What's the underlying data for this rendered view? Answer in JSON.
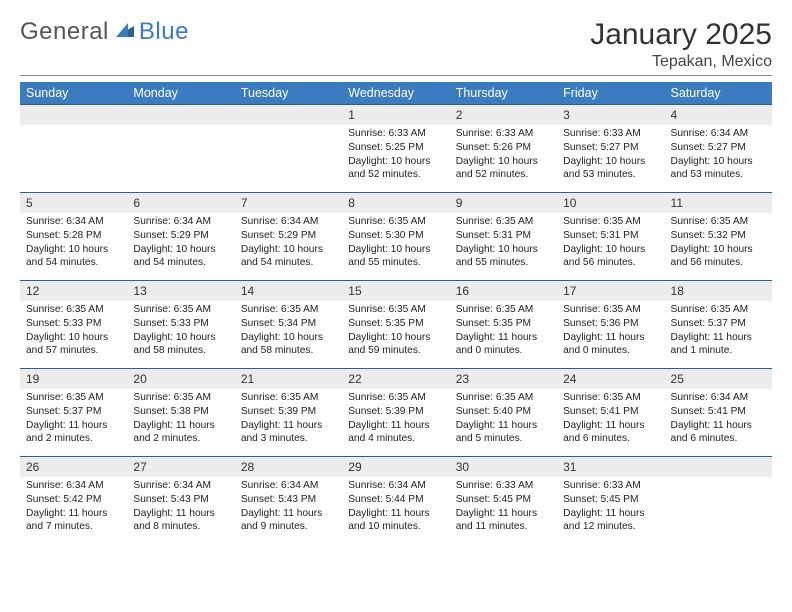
{
  "logo": {
    "word1": "General",
    "word2": "Blue"
  },
  "title": "January 2025",
  "location": "Tepakan, Mexico",
  "colors": {
    "header_bg": "#3b7bbf",
    "header_text": "#ffffff",
    "band_bg": "#ececec",
    "row_border": "#2f5f8f",
    "logo_blue": "#3b7bbf",
    "logo_gray": "#555555"
  },
  "weekdays": [
    "Sunday",
    "Monday",
    "Tuesday",
    "Wednesday",
    "Thursday",
    "Friday",
    "Saturday"
  ],
  "weeks": [
    [
      {
        "blank": true
      },
      {
        "blank": true
      },
      {
        "blank": true
      },
      {
        "day": "1",
        "sunrise": "Sunrise: 6:33 AM",
        "sunset": "Sunset: 5:25 PM",
        "daylight": "Daylight: 10 hours and 52 minutes."
      },
      {
        "day": "2",
        "sunrise": "Sunrise: 6:33 AM",
        "sunset": "Sunset: 5:26 PM",
        "daylight": "Daylight: 10 hours and 52 minutes."
      },
      {
        "day": "3",
        "sunrise": "Sunrise: 6:33 AM",
        "sunset": "Sunset: 5:27 PM",
        "daylight": "Daylight: 10 hours and 53 minutes."
      },
      {
        "day": "4",
        "sunrise": "Sunrise: 6:34 AM",
        "sunset": "Sunset: 5:27 PM",
        "daylight": "Daylight: 10 hours and 53 minutes."
      }
    ],
    [
      {
        "day": "5",
        "sunrise": "Sunrise: 6:34 AM",
        "sunset": "Sunset: 5:28 PM",
        "daylight": "Daylight: 10 hours and 54 minutes."
      },
      {
        "day": "6",
        "sunrise": "Sunrise: 6:34 AM",
        "sunset": "Sunset: 5:29 PM",
        "daylight": "Daylight: 10 hours and 54 minutes."
      },
      {
        "day": "7",
        "sunrise": "Sunrise: 6:34 AM",
        "sunset": "Sunset: 5:29 PM",
        "daylight": "Daylight: 10 hours and 54 minutes."
      },
      {
        "day": "8",
        "sunrise": "Sunrise: 6:35 AM",
        "sunset": "Sunset: 5:30 PM",
        "daylight": "Daylight: 10 hours and 55 minutes."
      },
      {
        "day": "9",
        "sunrise": "Sunrise: 6:35 AM",
        "sunset": "Sunset: 5:31 PM",
        "daylight": "Daylight: 10 hours and 55 minutes."
      },
      {
        "day": "10",
        "sunrise": "Sunrise: 6:35 AM",
        "sunset": "Sunset: 5:31 PM",
        "daylight": "Daylight: 10 hours and 56 minutes."
      },
      {
        "day": "11",
        "sunrise": "Sunrise: 6:35 AM",
        "sunset": "Sunset: 5:32 PM",
        "daylight": "Daylight: 10 hours and 56 minutes."
      }
    ],
    [
      {
        "day": "12",
        "sunrise": "Sunrise: 6:35 AM",
        "sunset": "Sunset: 5:33 PM",
        "daylight": "Daylight: 10 hours and 57 minutes."
      },
      {
        "day": "13",
        "sunrise": "Sunrise: 6:35 AM",
        "sunset": "Sunset: 5:33 PM",
        "daylight": "Daylight: 10 hours and 58 minutes."
      },
      {
        "day": "14",
        "sunrise": "Sunrise: 6:35 AM",
        "sunset": "Sunset: 5:34 PM",
        "daylight": "Daylight: 10 hours and 58 minutes."
      },
      {
        "day": "15",
        "sunrise": "Sunrise: 6:35 AM",
        "sunset": "Sunset: 5:35 PM",
        "daylight": "Daylight: 10 hours and 59 minutes."
      },
      {
        "day": "16",
        "sunrise": "Sunrise: 6:35 AM",
        "sunset": "Sunset: 5:35 PM",
        "daylight": "Daylight: 11 hours and 0 minutes."
      },
      {
        "day": "17",
        "sunrise": "Sunrise: 6:35 AM",
        "sunset": "Sunset: 5:36 PM",
        "daylight": "Daylight: 11 hours and 0 minutes."
      },
      {
        "day": "18",
        "sunrise": "Sunrise: 6:35 AM",
        "sunset": "Sunset: 5:37 PM",
        "daylight": "Daylight: 11 hours and 1 minute."
      }
    ],
    [
      {
        "day": "19",
        "sunrise": "Sunrise: 6:35 AM",
        "sunset": "Sunset: 5:37 PM",
        "daylight": "Daylight: 11 hours and 2 minutes."
      },
      {
        "day": "20",
        "sunrise": "Sunrise: 6:35 AM",
        "sunset": "Sunset: 5:38 PM",
        "daylight": "Daylight: 11 hours and 2 minutes."
      },
      {
        "day": "21",
        "sunrise": "Sunrise: 6:35 AM",
        "sunset": "Sunset: 5:39 PM",
        "daylight": "Daylight: 11 hours and 3 minutes."
      },
      {
        "day": "22",
        "sunrise": "Sunrise: 6:35 AM",
        "sunset": "Sunset: 5:39 PM",
        "daylight": "Daylight: 11 hours and 4 minutes."
      },
      {
        "day": "23",
        "sunrise": "Sunrise: 6:35 AM",
        "sunset": "Sunset: 5:40 PM",
        "daylight": "Daylight: 11 hours and 5 minutes."
      },
      {
        "day": "24",
        "sunrise": "Sunrise: 6:35 AM",
        "sunset": "Sunset: 5:41 PM",
        "daylight": "Daylight: 11 hours and 6 minutes."
      },
      {
        "day": "25",
        "sunrise": "Sunrise: 6:34 AM",
        "sunset": "Sunset: 5:41 PM",
        "daylight": "Daylight: 11 hours and 6 minutes."
      }
    ],
    [
      {
        "day": "26",
        "sunrise": "Sunrise: 6:34 AM",
        "sunset": "Sunset: 5:42 PM",
        "daylight": "Daylight: 11 hours and 7 minutes."
      },
      {
        "day": "27",
        "sunrise": "Sunrise: 6:34 AM",
        "sunset": "Sunset: 5:43 PM",
        "daylight": "Daylight: 11 hours and 8 minutes."
      },
      {
        "day": "28",
        "sunrise": "Sunrise: 6:34 AM",
        "sunset": "Sunset: 5:43 PM",
        "daylight": "Daylight: 11 hours and 9 minutes."
      },
      {
        "day": "29",
        "sunrise": "Sunrise: 6:34 AM",
        "sunset": "Sunset: 5:44 PM",
        "daylight": "Daylight: 11 hours and 10 minutes."
      },
      {
        "day": "30",
        "sunrise": "Sunrise: 6:33 AM",
        "sunset": "Sunset: 5:45 PM",
        "daylight": "Daylight: 11 hours and 11 minutes."
      },
      {
        "day": "31",
        "sunrise": "Sunrise: 6:33 AM",
        "sunset": "Sunset: 5:45 PM",
        "daylight": "Daylight: 11 hours and 12 minutes."
      },
      {
        "blank": true
      }
    ]
  ]
}
